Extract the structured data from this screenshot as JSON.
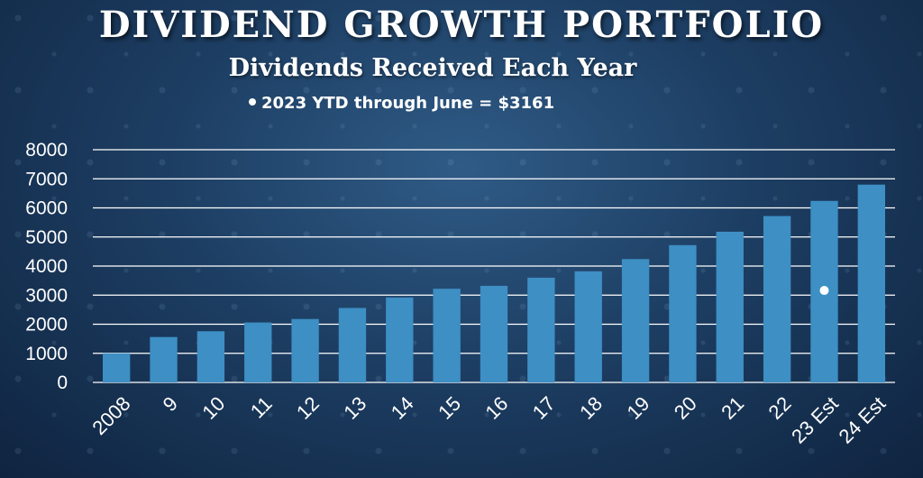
{
  "header": {
    "title": "DIVIDEND GROWTH PORTFOLIO",
    "subtitle": "Dividends Received Each Year",
    "note": "2023 YTD through  June = $3161"
  },
  "colors": {
    "bar": "#3d8fc4",
    "grid": "#ffffff",
    "marker": "#ffffff"
  },
  "chart_data": {
    "type": "bar",
    "title": "Dividends Received Each Year",
    "xlabel": "",
    "ylabel": "",
    "categories": [
      "2008",
      "9",
      "10",
      "11",
      "12",
      "13",
      "14",
      "15",
      "16",
      "17",
      "18",
      "19",
      "20",
      "21",
      "22",
      "23 Est",
      "24 Est"
    ],
    "values": [
      1000,
      1560,
      1760,
      2060,
      2180,
      2560,
      2920,
      3220,
      3320,
      3600,
      3820,
      4240,
      4720,
      5180,
      5720,
      6240,
      6800
    ],
    "ylim": [
      0,
      8000
    ],
    "yticks": [
      0,
      1000,
      2000,
      3000,
      4000,
      5000,
      6000,
      7000,
      8000
    ],
    "grid": true,
    "legend": "none",
    "annotations": [
      {
        "type": "marker",
        "category": "23 Est",
        "value": 3161,
        "label": "2023 YTD through  June = $3161"
      }
    ]
  }
}
